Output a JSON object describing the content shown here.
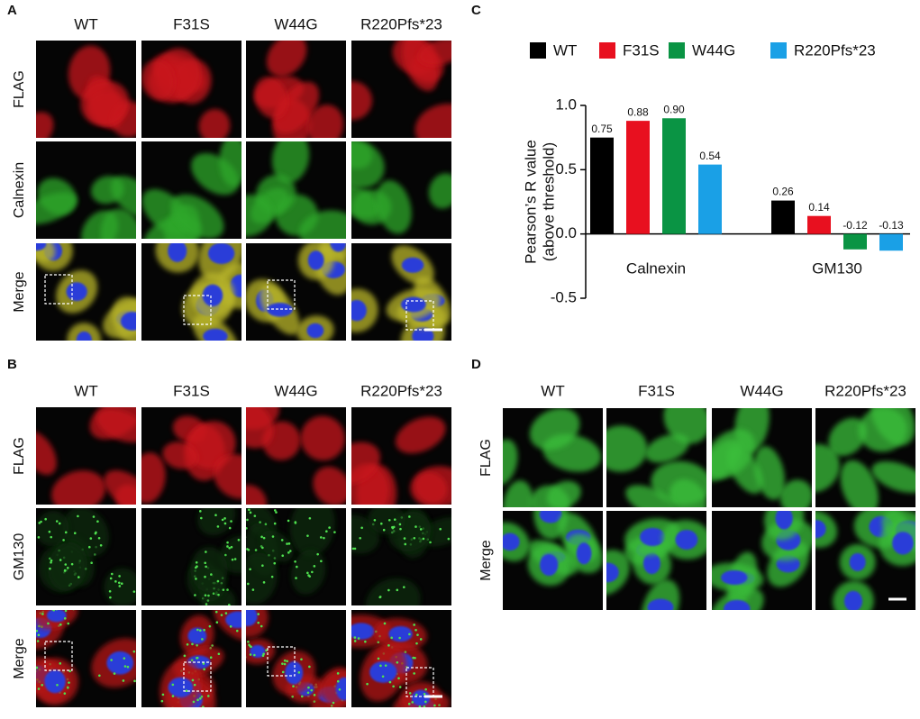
{
  "panels": {
    "A": {
      "label": "A",
      "columns": [
        "WT",
        "F31S",
        "W44G",
        "R220Pfs*23"
      ],
      "rows": [
        "FLAG",
        "Calnexin",
        "Merge"
      ]
    },
    "B": {
      "label": "B",
      "columns": [
        "WT",
        "F31S",
        "W44G",
        "R220Pfs*23"
      ],
      "rows": [
        "FLAG",
        "GM130",
        "Merge"
      ]
    },
    "C": {
      "label": "C"
    },
    "D": {
      "label": "D",
      "columns": [
        "WT",
        "F31S",
        "W44G",
        "R220Pfs*23"
      ],
      "rows": [
        "FLAG",
        "Merge"
      ]
    }
  },
  "chart_data": {
    "type": "bar",
    "ylabel": [
      "Pearson’s R value",
      "(above threshold)"
    ],
    "categories": [
      "Calnexin",
      "GM130"
    ],
    "series": [
      {
        "name": "WT",
        "color": "#000000",
        "values": [
          0.75,
          0.26
        ]
      },
      {
        "name": "F31S",
        "color": "#e8101f",
        "values": [
          0.88,
          0.14
        ]
      },
      {
        "name": "W44G",
        "color": "#0a9444",
        "values": [
          0.9,
          -0.12
        ],
        "value_labels": [
          "0.90",
          "-0.12"
        ]
      },
      {
        "name": "R220Pfs*23",
        "color": "#1aa0e6",
        "values": [
          0.54,
          -0.13
        ]
      }
    ],
    "ylim": [
      -0.5,
      1.0
    ],
    "yticks": [
      -0.5,
      {
        "value": 0,
        "label": "0.0"
      },
      0.5,
      {
        "value": 1.0,
        "label": "1.0"
      }
    ]
  }
}
